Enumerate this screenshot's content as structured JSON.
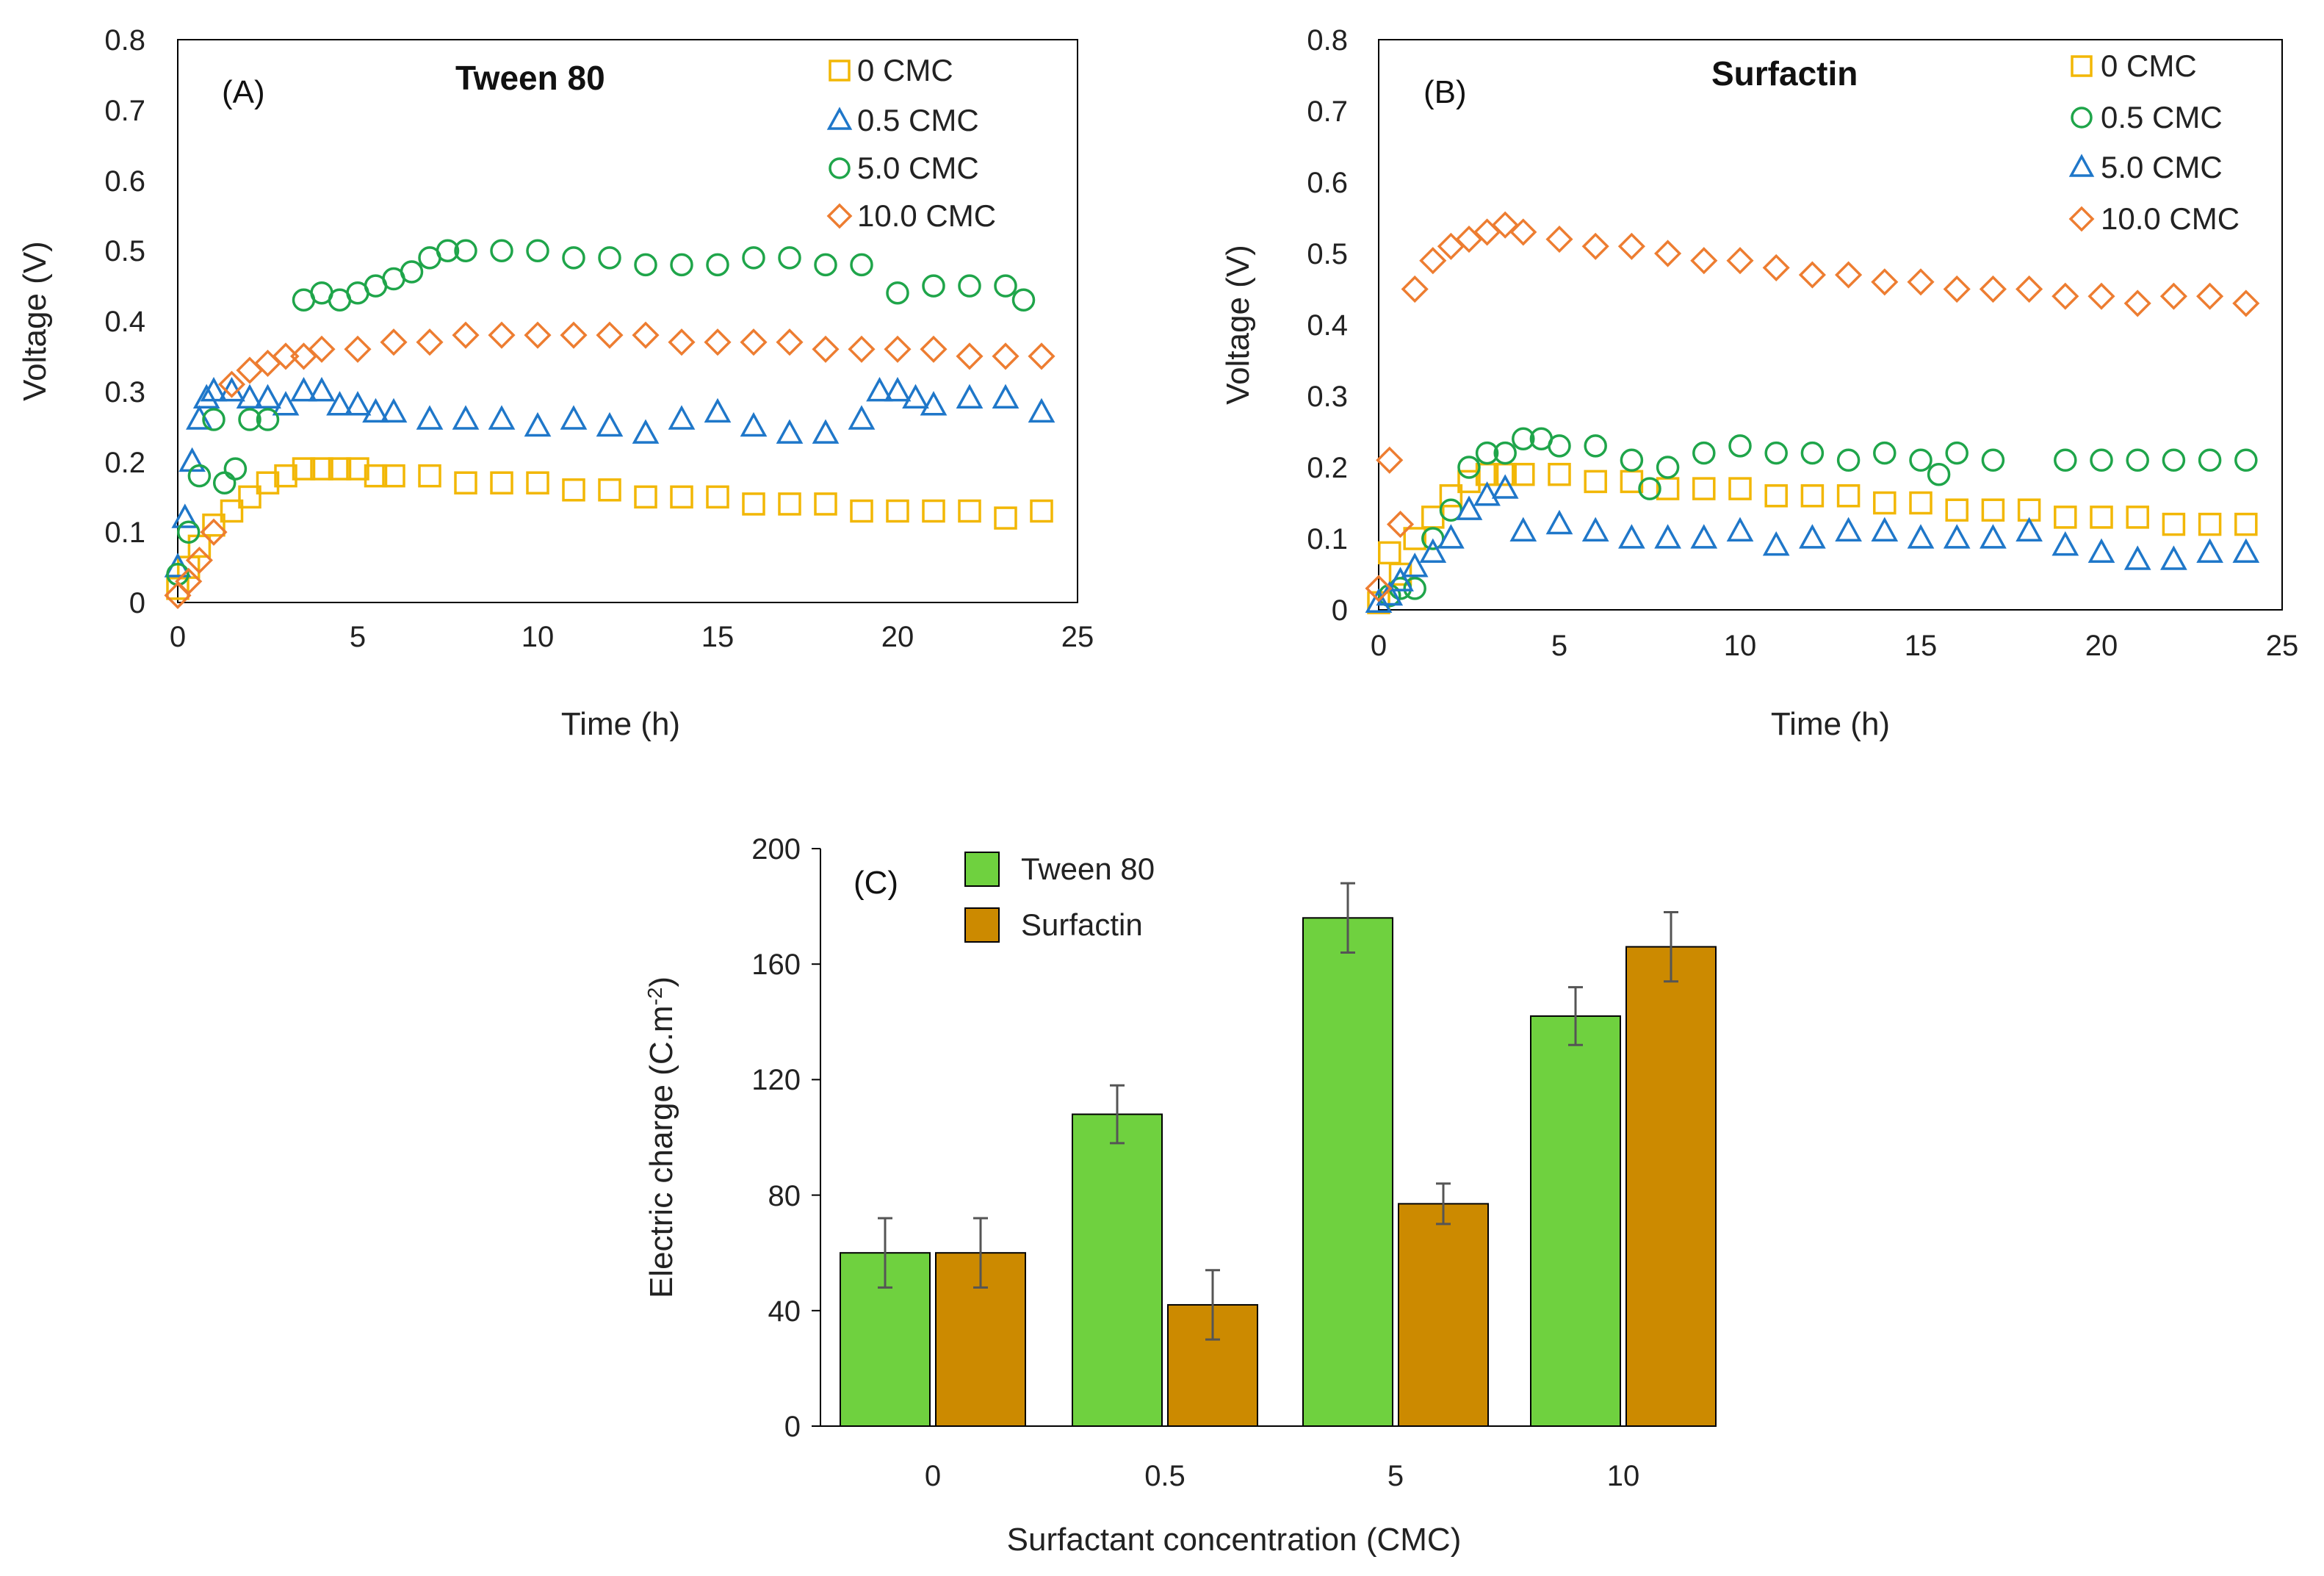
{
  "chart_data": [
    {
      "id": "A",
      "type": "scatter",
      "panel_label": "(A)",
      "title": "Tween 80",
      "xlabel": "Time (h)",
      "ylabel": "Voltage (V)",
      "xlim": [
        0,
        25
      ],
      "ylim": [
        0,
        0.8
      ],
      "xticks": [
        0,
        5,
        10,
        15,
        20,
        25
      ],
      "yticks": [
        0,
        0.1,
        0.2,
        0.3,
        0.4,
        0.5,
        0.6,
        0.7,
        0.8
      ],
      "ytick_labels": [
        "0",
        "0.1",
        "0.2",
        "0.3",
        "0.4",
        "0.5",
        "0.6",
        "0.7",
        "0.8"
      ],
      "legend_position": "top-right",
      "series": [
        {
          "name": "0 CMC",
          "marker": "square",
          "color": "#f2b705",
          "x": [
            0,
            0.3,
            0.6,
            1,
            1.5,
            2,
            2.5,
            3,
            3.5,
            4,
            4.5,
            5,
            5.5,
            6,
            7,
            8,
            9,
            10,
            11,
            12,
            13,
            14,
            15,
            16,
            17,
            18,
            19,
            20,
            21,
            22,
            23,
            24
          ],
          "y": [
            0.02,
            0.05,
            0.08,
            0.11,
            0.13,
            0.15,
            0.17,
            0.18,
            0.19,
            0.19,
            0.19,
            0.19,
            0.18,
            0.18,
            0.18,
            0.17,
            0.17,
            0.17,
            0.16,
            0.16,
            0.15,
            0.15,
            0.15,
            0.14,
            0.14,
            0.14,
            0.13,
            0.13,
            0.13,
            0.13,
            0.12,
            0.13
          ]
        },
        {
          "name": "0.5 CMC",
          "marker": "triangle",
          "color": "#1f77c9",
          "x": [
            0,
            0.2,
            0.4,
            0.6,
            0.8,
            1,
            1.5,
            2,
            2.5,
            3,
            3.5,
            4,
            4.5,
            5,
            5.5,
            6,
            7,
            8,
            9,
            10,
            11,
            12,
            13,
            14,
            15,
            16,
            17,
            18,
            19,
            19.5,
            20,
            20.5,
            21,
            22,
            23,
            24
          ],
          "y": [
            0.05,
            0.12,
            0.2,
            0.26,
            0.29,
            0.3,
            0.3,
            0.29,
            0.29,
            0.28,
            0.3,
            0.3,
            0.28,
            0.28,
            0.27,
            0.27,
            0.26,
            0.26,
            0.26,
            0.25,
            0.26,
            0.25,
            0.24,
            0.26,
            0.27,
            0.25,
            0.24,
            0.24,
            0.26,
            0.3,
            0.3,
            0.29,
            0.28,
            0.29,
            0.29,
            0.27
          ]
        },
        {
          "name": "5.0 CMC",
          "marker": "circle",
          "color": "#1fa54a",
          "x": [
            0,
            0.3,
            0.6,
            1,
            1.3,
            1.6,
            2,
            2.5,
            3.5,
            4,
            4.5,
            5,
            5.5,
            6,
            6.5,
            7,
            7.5,
            8,
            9,
            10,
            11,
            12,
            13,
            14,
            15,
            16,
            17,
            18,
            19,
            20,
            21,
            22,
            23,
            23.5
          ],
          "y": [
            0.04,
            0.1,
            0.18,
            0.26,
            0.17,
            0.19,
            0.26,
            0.26,
            0.43,
            0.44,
            0.43,
            0.44,
            0.45,
            0.46,
            0.47,
            0.49,
            0.5,
            0.5,
            0.5,
            0.5,
            0.49,
            0.49,
            0.48,
            0.48,
            0.48,
            0.49,
            0.49,
            0.48,
            0.48,
            0.44,
            0.45,
            0.45,
            0.45,
            0.43
          ]
        },
        {
          "name": "10.0 CMC",
          "marker": "diamond",
          "color": "#ed7d31",
          "x": [
            0,
            0.3,
            0.6,
            1,
            1.5,
            2,
            2.5,
            3,
            3.5,
            4,
            5,
            6,
            7,
            8,
            9,
            10,
            11,
            12,
            13,
            14,
            15,
            16,
            17,
            18,
            19,
            20,
            21,
            22,
            23,
            24
          ],
          "y": [
            0.01,
            0.03,
            0.06,
            0.1,
            0.31,
            0.33,
            0.34,
            0.35,
            0.35,
            0.36,
            0.36,
            0.37,
            0.37,
            0.38,
            0.38,
            0.38,
            0.38,
            0.38,
            0.38,
            0.37,
            0.37,
            0.37,
            0.37,
            0.36,
            0.36,
            0.36,
            0.36,
            0.35,
            0.35,
            0.35
          ]
        }
      ]
    },
    {
      "id": "B",
      "type": "scatter",
      "panel_label": "(B)",
      "title": "Surfactin",
      "xlabel": "Time (h)",
      "ylabel": "Voltage (V)",
      "xlim": [
        0,
        25
      ],
      "ylim": [
        0,
        0.8
      ],
      "xticks": [
        0,
        5,
        10,
        15,
        20,
        25
      ],
      "yticks": [
        0,
        0.1,
        0.2,
        0.3,
        0.4,
        0.5,
        0.6,
        0.7,
        0.8
      ],
      "ytick_labels": [
        "0",
        "0.1",
        "0.2",
        "0.3",
        "0.4",
        "0.5",
        "0.6",
        "0.7",
        "0.8"
      ],
      "legend_position": "top-right",
      "series": [
        {
          "name": "0 CMC",
          "marker": "square",
          "color": "#f2b705",
          "x": [
            0,
            0.3,
            0.6,
            1,
            1.5,
            2,
            2.5,
            3,
            3.5,
            4,
            5,
            6,
            7,
            8,
            9,
            10,
            11,
            12,
            13,
            14,
            15,
            16,
            17,
            18,
            19,
            20,
            21,
            22,
            23,
            24
          ],
          "y": [
            0.01,
            0.08,
            0.05,
            0.1,
            0.13,
            0.16,
            0.18,
            0.19,
            0.19,
            0.19,
            0.19,
            0.18,
            0.18,
            0.17,
            0.17,
            0.17,
            0.16,
            0.16,
            0.16,
            0.15,
            0.15,
            0.14,
            0.14,
            0.14,
            0.13,
            0.13,
            0.13,
            0.12,
            0.12,
            0.12
          ]
        },
        {
          "name": "0.5 CMC",
          "marker": "circle",
          "color": "#1fa54a",
          "x": [
            0.3,
            0.6,
            1,
            1.5,
            2,
            2.5,
            3,
            3.5,
            4,
            4.5,
            5,
            6,
            7,
            7.5,
            8,
            9,
            10,
            11,
            12,
            13,
            14,
            15,
            15.5,
            16,
            17,
            19,
            20,
            21,
            22,
            23,
            24
          ],
          "y": [
            0.02,
            0.03,
            0.03,
            0.1,
            0.14,
            0.2,
            0.22,
            0.22,
            0.24,
            0.24,
            0.23,
            0.23,
            0.21,
            0.17,
            0.2,
            0.22,
            0.23,
            0.22,
            0.22,
            0.21,
            0.22,
            0.21,
            0.19,
            0.22,
            0.21,
            0.21,
            0.21,
            0.21,
            0.21,
            0.21,
            0.21
          ]
        },
        {
          "name": "5.0 CMC",
          "marker": "triangle",
          "color": "#1f77c9",
          "x": [
            0,
            0.3,
            0.6,
            1,
            1.5,
            2,
            2.5,
            3,
            3.5,
            4,
            5,
            6,
            7,
            8,
            9,
            10,
            11,
            12,
            13,
            14,
            15,
            16,
            17,
            18,
            19,
            20,
            21,
            22,
            23,
            24
          ],
          "y": [
            0.01,
            0.02,
            0.04,
            0.06,
            0.08,
            0.1,
            0.14,
            0.16,
            0.17,
            0.11,
            0.12,
            0.11,
            0.1,
            0.1,
            0.1,
            0.11,
            0.09,
            0.1,
            0.11,
            0.11,
            0.1,
            0.1,
            0.1,
            0.11,
            0.09,
            0.08,
            0.07,
            0.07,
            0.08,
            0.08
          ]
        },
        {
          "name": "10.0 CMC",
          "marker": "diamond",
          "color": "#ed7d31",
          "x": [
            0,
            0.3,
            0.6,
            1,
            1.5,
            2,
            2.5,
            3,
            3.5,
            4,
            5,
            6,
            7,
            8,
            9,
            10,
            11,
            12,
            13,
            14,
            15,
            16,
            17,
            18,
            19,
            20,
            21,
            22,
            23,
            24
          ],
          "y": [
            0.03,
            0.21,
            0.12,
            0.45,
            0.49,
            0.51,
            0.52,
            0.53,
            0.54,
            0.53,
            0.52,
            0.51,
            0.51,
            0.5,
            0.49,
            0.49,
            0.48,
            0.47,
            0.47,
            0.46,
            0.46,
            0.45,
            0.45,
            0.45,
            0.44,
            0.44,
            0.43,
            0.44,
            0.44,
            0.43
          ]
        }
      ]
    },
    {
      "id": "C",
      "type": "bar",
      "panel_label": "(C)",
      "xlabel": "Surfactant concentration (CMC)",
      "ylabel": "Electric charge (C.m",
      "ylabel_sup": "-2",
      "ylabel_tail": ")",
      "categories": [
        "0",
        "0.5",
        "5",
        "10"
      ],
      "ylim": [
        0,
        200
      ],
      "yticks": [
        0,
        40,
        80,
        120,
        160,
        200
      ],
      "ytick_labels": [
        "0",
        "40",
        "80",
        "120",
        "160",
        "200"
      ],
      "legend_position": "top-left",
      "series": [
        {
          "name": "Tween 80",
          "color": "#6fd13f",
          "values": [
            60,
            108,
            176,
            142
          ],
          "errors": [
            12,
            10,
            12,
            10
          ]
        },
        {
          "name": "Surfactin",
          "color": "#cc8a00",
          "values": [
            60,
            42,
            77,
            166
          ],
          "errors": [
            12,
            12,
            7,
            12
          ]
        }
      ]
    }
  ]
}
